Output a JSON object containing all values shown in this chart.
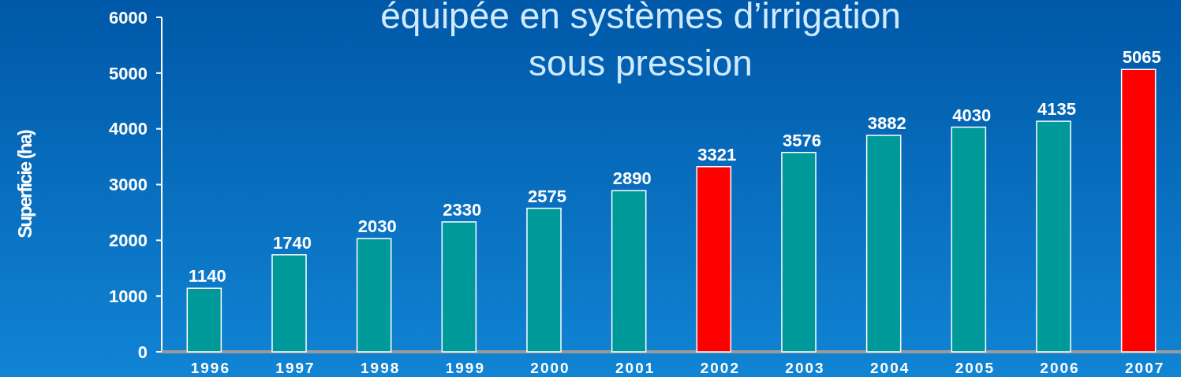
{
  "chart_data": {
    "type": "bar",
    "title": "équipée en systèmes d’irrigation\nsous pression",
    "ylabel": "Superficie (ha)",
    "categories": [
      "1996",
      "1997",
      "1998",
      "1999",
      "2000",
      "2001",
      "2002",
      "2003",
      "2004",
      "2005",
      "2006",
      "2007"
    ],
    "values": [
      1140,
      1740,
      2030,
      2330,
      2575,
      2890,
      3321,
      3576,
      3882,
      4030,
      4135,
      5065
    ],
    "colors": [
      "#009999",
      "#009999",
      "#009999",
      "#009999",
      "#009999",
      "#009999",
      "#ff0000",
      "#009999",
      "#009999",
      "#009999",
      "#009999",
      "#ff0000"
    ],
    "ylim": [
      0,
      6000
    ],
    "yticks": [
      0,
      1000,
      2000,
      3000,
      4000,
      5000,
      6000
    ],
    "data_labels": true
  }
}
